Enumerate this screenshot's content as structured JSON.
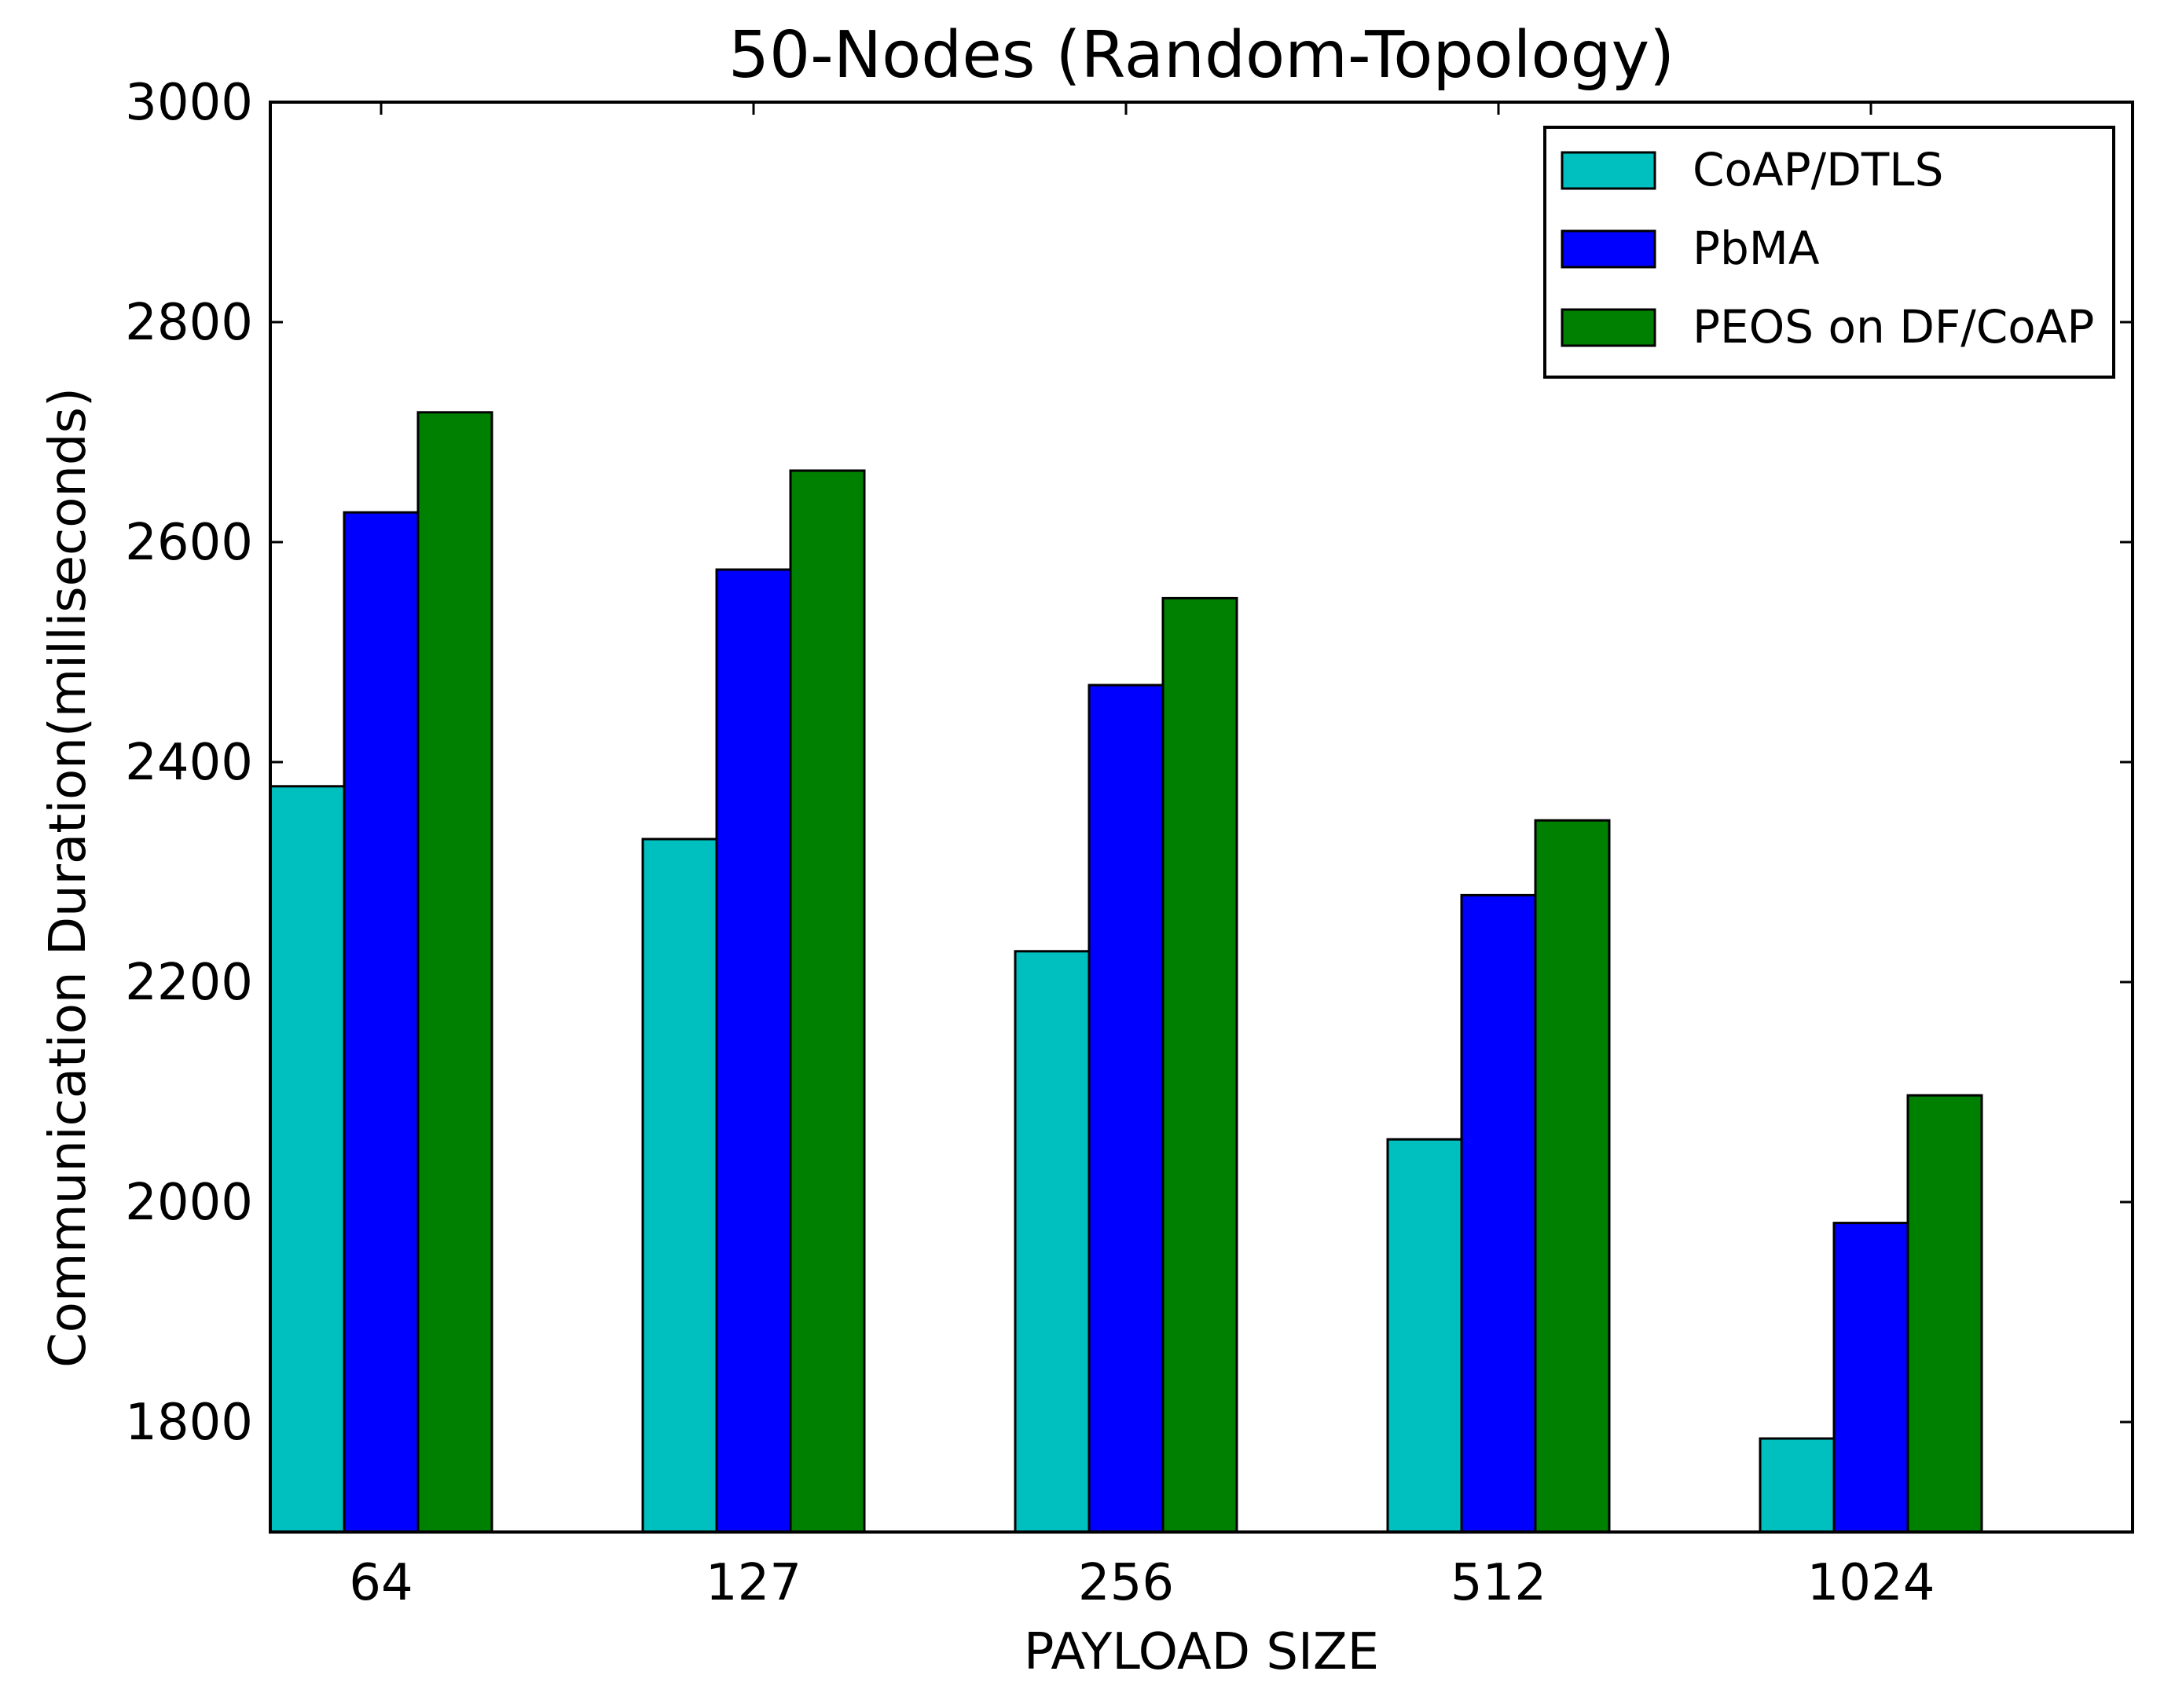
{
  "chart_data": {
    "type": "bar",
    "title": "50-Nodes (Random-Topology)",
    "xlabel": "PAYLOAD SIZE",
    "ylabel": "Communication Duration(milliseconds)",
    "categories": [
      "64",
      "127",
      "256",
      "512",
      "1024"
    ],
    "ylim": [
      1700,
      3000
    ],
    "yticks": [
      1800,
      2000,
      2200,
      2400,
      2600,
      2800,
      3000
    ],
    "legend_position": "top-right",
    "series": [
      {
        "name": "CoAP/DTLS",
        "color": "#00bfbf",
        "values": [
          2378,
          2330,
          2228,
          2057,
          1785
        ]
      },
      {
        "name": "PbMA",
        "color": "#0000ff",
        "values": [
          2627,
          2575,
          2470,
          2279,
          1981
        ]
      },
      {
        "name": "PEOS on DF/CoAP",
        "color": "#008000",
        "values": [
          2718,
          2665,
          2549,
          2347,
          2097
        ]
      }
    ]
  }
}
